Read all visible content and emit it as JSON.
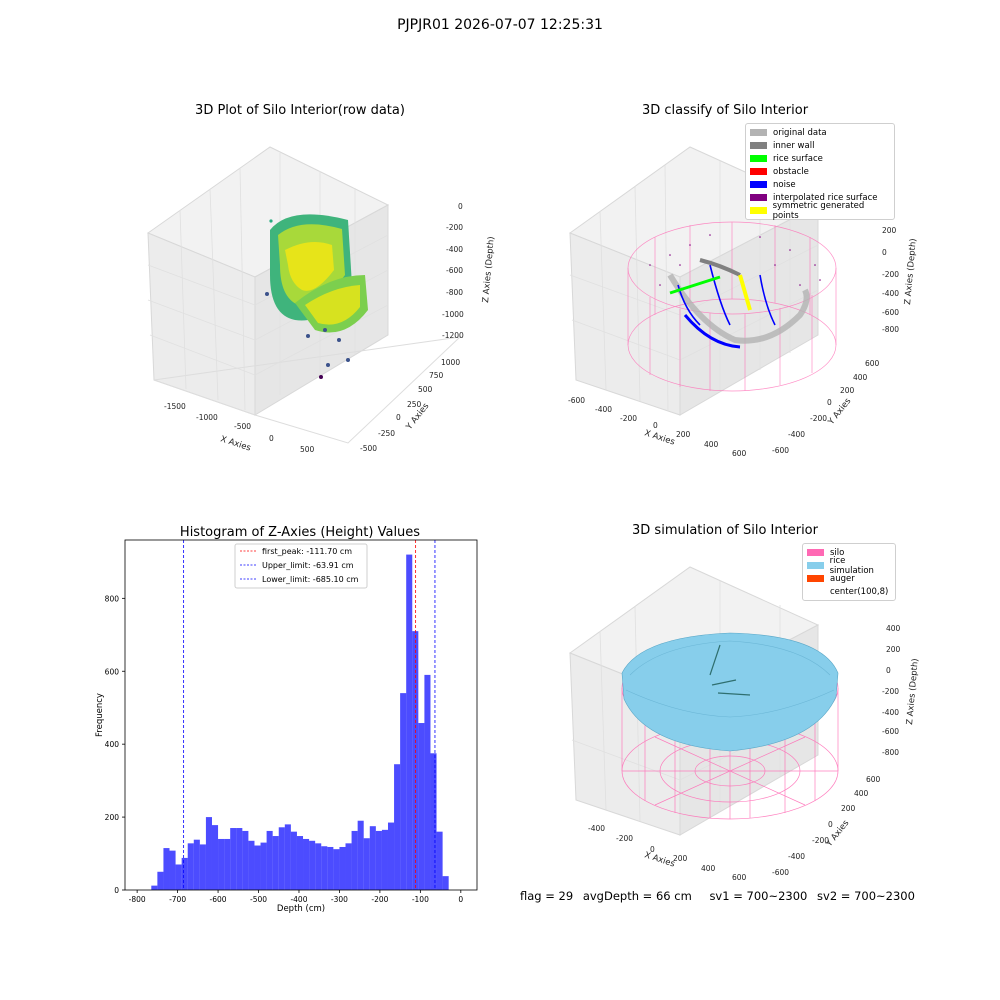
{
  "suptitle": "PJPJR01 2026-07-07 12:25:31",
  "panels": {
    "raw": {
      "title": "3D Plot of Silo Interior(row data)",
      "xlabel": "X Axies",
      "ylabel": "Y Axies",
      "zlabel": "Z Axies (Depth)",
      "xticks": [
        "-1500",
        "-1000",
        "-500",
        "0",
        "500"
      ],
      "yticks": [
        "-500",
        "-250",
        "0",
        "250",
        "500",
        "750",
        "1000"
      ],
      "zticks": [
        "0",
        "-200",
        "-400",
        "-600",
        "-800",
        "-1000",
        "-1200"
      ]
    },
    "classify": {
      "title": "3D classify of Silo Interior",
      "xlabel": "X Axies",
      "ylabel": "Y Axies",
      "zlabel": "Z Axies (Depth)",
      "xticks": [
        "-600",
        "-400",
        "-200",
        "0",
        "200",
        "400",
        "600"
      ],
      "yticks": [
        "-600",
        "-400",
        "-200",
        "0",
        "200",
        "400",
        "600"
      ],
      "zticks": [
        "200",
        "0",
        "-200",
        "-400",
        "-600",
        "-800"
      ],
      "legend": [
        {
          "label": "original data",
          "color": "#b3b3b3"
        },
        {
          "label": "inner wall",
          "color": "#808080"
        },
        {
          "label": "rice surface",
          "color": "#00ff00"
        },
        {
          "label": "obstacle",
          "color": "#ff0000"
        },
        {
          "label": "noise",
          "color": "#0000ff"
        },
        {
          "label": "interpolated rice surface",
          "color": "#800080"
        },
        {
          "label": "symmetric generated points",
          "color": "#ffff00"
        }
      ]
    },
    "simulation": {
      "title": "3D simulation of Silo Interior",
      "xlabel": "X Axies",
      "ylabel": "Y Axies",
      "zlabel": "Z Axies (Depth)",
      "xticks": [
        "-400",
        "-200",
        "0",
        "200",
        "400",
        "600"
      ],
      "yticks": [
        "-600",
        "-400",
        "-200",
        "0",
        "200",
        "400",
        "600"
      ],
      "zticks": [
        "400",
        "200",
        "0",
        "-200",
        "-400",
        "-600",
        "-800"
      ],
      "legend": [
        {
          "label": "silo",
          "color": "#ff69b4"
        },
        {
          "label": "rice simulation",
          "color": "#87ceeb"
        },
        {
          "label": "auger",
          "color": "#ff4500"
        },
        {
          "label": "center(100,8)",
          "color": "#ffffff"
        }
      ]
    }
  },
  "chart_data": {
    "type": "bar",
    "title": "Histogram of Z-Axies (Height) Values",
    "xlabel": "Depth (cm)",
    "ylabel": "Frequency",
    "xlim": [
      -830,
      40
    ],
    "ylim": [
      0,
      960
    ],
    "xticks": [
      -800,
      -700,
      -600,
      -500,
      -400,
      -300,
      -200,
      -100,
      0
    ],
    "yticks": [
      0,
      200,
      400,
      600,
      800
    ],
    "bar_color": "#0000ff",
    "bin_width": 15,
    "bins": [
      {
        "x0": -765,
        "count": 12
      },
      {
        "x0": -750,
        "count": 50
      },
      {
        "x0": -735,
        "count": 115
      },
      {
        "x0": -720,
        "count": 108
      },
      {
        "x0": -705,
        "count": 70
      },
      {
        "x0": -690,
        "count": 88
      },
      {
        "x0": -675,
        "count": 128
      },
      {
        "x0": -660,
        "count": 138
      },
      {
        "x0": -645,
        "count": 125
      },
      {
        "x0": -630,
        "count": 200
      },
      {
        "x0": -615,
        "count": 178
      },
      {
        "x0": -600,
        "count": 140
      },
      {
        "x0": -585,
        "count": 140
      },
      {
        "x0": -570,
        "count": 170
      },
      {
        "x0": -555,
        "count": 170
      },
      {
        "x0": -540,
        "count": 162
      },
      {
        "x0": -525,
        "count": 135
      },
      {
        "x0": -510,
        "count": 122
      },
      {
        "x0": -495,
        "count": 130
      },
      {
        "x0": -480,
        "count": 162
      },
      {
        "x0": -465,
        "count": 148
      },
      {
        "x0": -450,
        "count": 172
      },
      {
        "x0": -435,
        "count": 180
      },
      {
        "x0": -420,
        "count": 160
      },
      {
        "x0": -405,
        "count": 148
      },
      {
        "x0": -390,
        "count": 140
      },
      {
        "x0": -375,
        "count": 135
      },
      {
        "x0": -360,
        "count": 128
      },
      {
        "x0": -345,
        "count": 120
      },
      {
        "x0": -330,
        "count": 118
      },
      {
        "x0": -315,
        "count": 112
      },
      {
        "x0": -300,
        "count": 118
      },
      {
        "x0": -285,
        "count": 128
      },
      {
        "x0": -270,
        "count": 162
      },
      {
        "x0": -255,
        "count": 190
      },
      {
        "x0": -240,
        "count": 142
      },
      {
        "x0": -225,
        "count": 175
      },
      {
        "x0": -210,
        "count": 162
      },
      {
        "x0": -195,
        "count": 165
      },
      {
        "x0": -180,
        "count": 185
      },
      {
        "x0": -165,
        "count": 345
      },
      {
        "x0": -150,
        "count": 540
      },
      {
        "x0": -135,
        "count": 920
      },
      {
        "x0": -120,
        "count": 710
      },
      {
        "x0": -105,
        "count": 458
      },
      {
        "x0": -90,
        "count": 590
      },
      {
        "x0": -75,
        "count": 375
      },
      {
        "x0": -60,
        "count": 160
      },
      {
        "x0": -45,
        "count": 38
      }
    ],
    "vlines": [
      {
        "x": -111.7,
        "color": "#ff0000",
        "label": "first_peak: -111.70 cm"
      },
      {
        "x": -63.91,
        "color": "#0000ff",
        "label": "Upper_limit: -63.91 cm"
      },
      {
        "x": -685.1,
        "color": "#0000ff",
        "label": "Lower_limit: -685.10 cm"
      }
    ]
  },
  "status": {
    "flag": "flag = 29",
    "avg_depth": "avgDepth = 66 cm",
    "sv1": "sv1 = 700~2300",
    "sv2": "sv2 = 700~2300"
  }
}
